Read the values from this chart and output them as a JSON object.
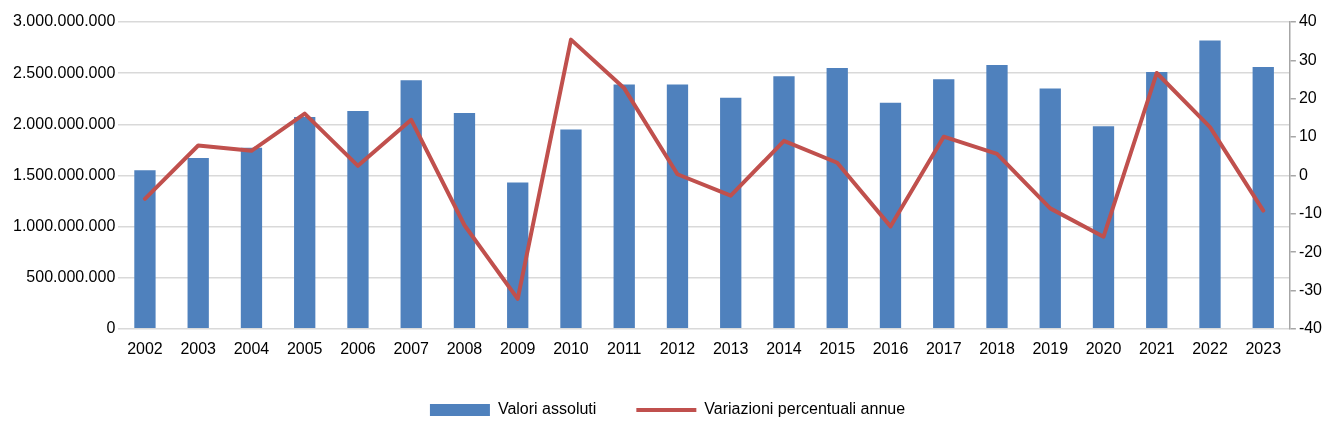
{
  "chart_data": {
    "type": "bar",
    "categories": [
      "2002",
      "2003",
      "2004",
      "2005",
      "2006",
      "2007",
      "2008",
      "2009",
      "2010",
      "2011",
      "2012",
      "2013",
      "2014",
      "2015",
      "2016",
      "2017",
      "2018",
      "2019",
      "2020",
      "2021",
      "2022",
      "2023"
    ],
    "series": [
      {
        "name": "Valori assoluti",
        "color": "#4f81bd",
        "values": [
          1550000000,
          1670000000,
          1770000000,
          2070000000,
          2130000000,
          2430000000,
          2110000000,
          1430000000,
          1950000000,
          2390000000,
          2390000000,
          2260000000,
          2470000000,
          2550000000,
          2210000000,
          2440000000,
          2580000000,
          2350000000,
          1980000000,
          2510000000,
          2820000000,
          2560000000
        ]
      },
      {
        "name": "Variazioni percentuali annue",
        "type": "line",
        "axis": "y2",
        "color": "#c0504d",
        "values": [
          -6.1,
          7.8,
          6.4,
          16.1,
          2.5,
          14.5,
          -13.0,
          -32.2,
          35.4,
          22.7,
          0.3,
          -5.3,
          9.0,
          3.3,
          -13.3,
          10.1,
          5.6,
          -8.6,
          -16.0,
          26.7,
          12.6,
          -9.2
        ]
      }
    ],
    "ylim": [
      0,
      3000000000
    ],
    "yticks": [
      {
        "value": 0,
        "label": "0"
      },
      {
        "value": 500000000,
        "label": "500.000.000"
      },
      {
        "value": 1000000000,
        "label": "1.000.000.000"
      },
      {
        "value": 1500000000,
        "label": "1.500.000.000"
      },
      {
        "value": 2000000000,
        "label": "2.000.000.000"
      },
      {
        "value": 2500000000,
        "label": "2.500.000.000"
      },
      {
        "value": 3000000000,
        "label": "3.000.000.000"
      }
    ],
    "y2lim": [
      -40,
      40
    ],
    "y2ticks": [
      -40,
      -30,
      -20,
      -10,
      0,
      10,
      20,
      30,
      40
    ],
    "grid": "y",
    "legend": "bottom",
    "marker": "none"
  }
}
